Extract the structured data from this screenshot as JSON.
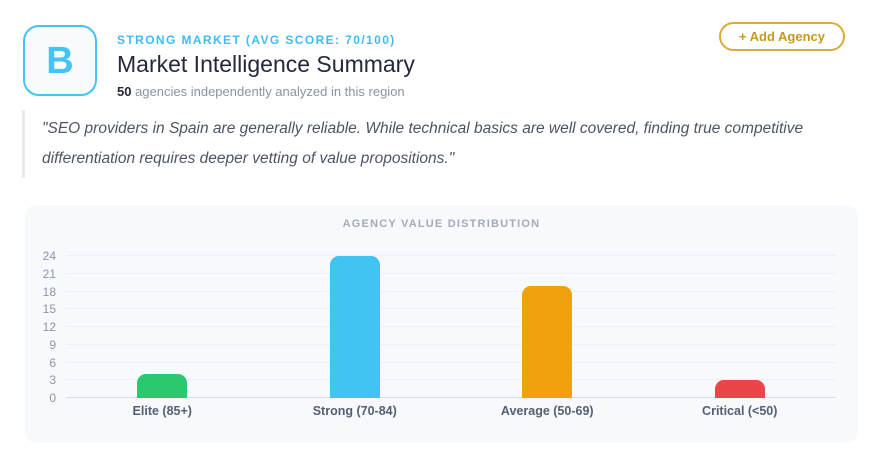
{
  "header": {
    "grade": "B",
    "eyebrow": "STRONG MARKET (AVG SCORE: 70/100)",
    "title": "Market Intelligence Summary",
    "subtitle_count": "50",
    "subtitle_rest": " agencies independently analyzed in this region",
    "add_agency_label": "+ Add Agency"
  },
  "quote": "\"SEO providers in Spain are generally reliable. While technical basics are well covered, finding true competitive differentiation requires deeper vetting of value propositions.\"",
  "colors": {
    "accent_cyan": "#45c3f4",
    "gold_border": "#d9ab3c",
    "gold_text": "#c8991f",
    "panel_bg": "#f7f9fc"
  },
  "chart_data": {
    "type": "bar",
    "title": "AGENCY VALUE DISTRIBUTION",
    "categories": [
      "Elite (85+)",
      "Strong (70-84)",
      "Average (50-69)",
      "Critical (<50)"
    ],
    "values": [
      4,
      24,
      19,
      3
    ],
    "colors": [
      "#2bc96e",
      "#41c3f4",
      "#f1a10e",
      "#ea4648"
    ],
    "xlabel": "",
    "ylabel": "",
    "ylim": [
      0,
      24
    ],
    "yticks": [
      0,
      3,
      6,
      9,
      12,
      15,
      18,
      21,
      24
    ],
    "grid": true,
    "legend": "none"
  }
}
